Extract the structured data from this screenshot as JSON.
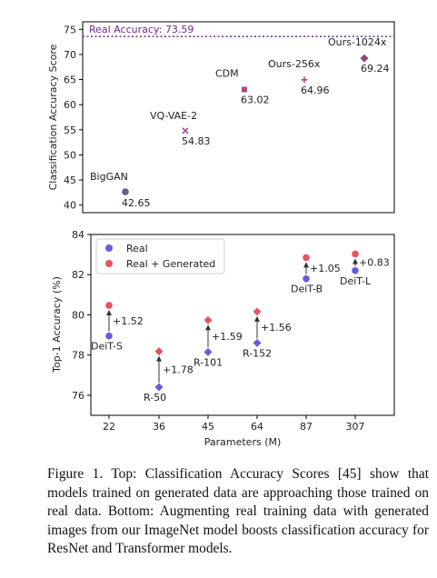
{
  "chart_data": [
    {
      "type": "scatter",
      "ylabel": "Classification Accuracy Score",
      "ylim": [
        38.5,
        76.5
      ],
      "yticks": [
        40,
        45,
        50,
        55,
        60,
        65,
        70,
        75
      ],
      "reference_line": {
        "label": "Real Accuracy: 73.59",
        "value": 73.59,
        "color": "#6a2c88"
      },
      "points": [
        {
          "name": "BigGAN",
          "value": 42.65,
          "value_label": "42.65",
          "marker": "circle",
          "color": "#6f5a86"
        },
        {
          "name": "VQ-VAE-2",
          "value": 54.83,
          "value_label": "54.83",
          "marker": "x",
          "color": "#9c4a8c"
        },
        {
          "name": "CDM",
          "value": 63.02,
          "value_label": "63.02",
          "marker": "square",
          "color": "#a0508a"
        },
        {
          "name": "Ours-256x",
          "value": 64.96,
          "value_label": "64.96",
          "marker": "plus",
          "color": "#9c4a8c"
        },
        {
          "name": "Ours-1024x",
          "value": 69.24,
          "value_label": "69.24",
          "marker": "diamond",
          "color": "#8a4a80"
        }
      ]
    },
    {
      "type": "scatter",
      "xlabel": "Parameters (M)",
      "ylabel": "Top-1 Accuracy (%)",
      "ylim": [
        75.0,
        84.0
      ],
      "yticks": [
        76,
        78,
        80,
        82,
        84
      ],
      "categories": [
        "22",
        "36",
        "45",
        "64",
        "87",
        "307"
      ],
      "legend": {
        "placement": "top-left"
      },
      "series": [
        {
          "name": "Real",
          "color": "#6a5ae0",
          "values": [
            78.95,
            76.4,
            78.15,
            78.6,
            81.8,
            82.2
          ]
        },
        {
          "name": "Real + Generated",
          "color": "#e8525f",
          "values": [
            80.47,
            78.18,
            79.74,
            80.16,
            82.85,
            83.03
          ]
        }
      ],
      "markers": [
        "circle",
        "diamond",
        "diamond",
        "diamond",
        "circle",
        "circle"
      ],
      "model_labels": [
        "DeiT-S",
        "R-50",
        "R-101",
        "R-152",
        "DeiT-B",
        "DeiT-L"
      ],
      "gains": [
        "+1.52",
        "+1.78",
        "+1.59",
        "+1.56",
        "+1.05",
        "+0.83"
      ]
    }
  ],
  "caption": "Figure 1.  Top: Classification Accuracy Scores [45] show that models trained on generated data are approaching those trained on real data. Bottom: Augmenting real training data with generated images from our ImageNet model boosts classification accuracy for ResNet and Transformer models."
}
